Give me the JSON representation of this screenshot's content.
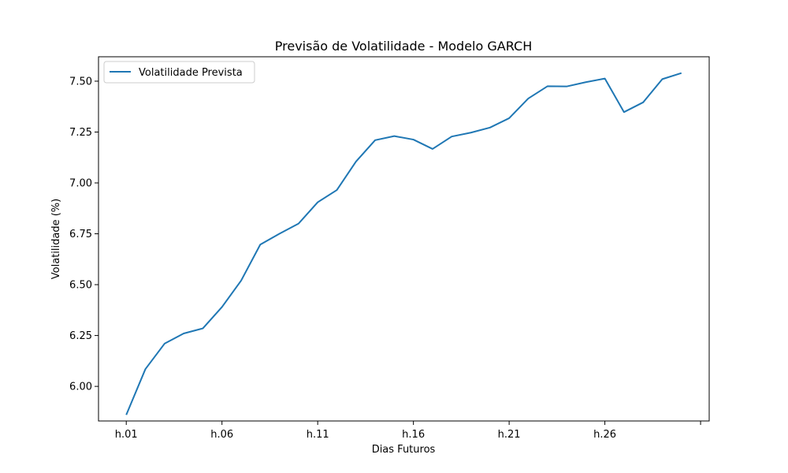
{
  "chart_data": {
    "type": "line",
    "title": "Previsão de Volatilidade - Modelo GARCH",
    "xlabel": "Dias Futuros",
    "ylabel": "Volatilidade (%)",
    "x": [
      "h.01",
      "h.02",
      "h.03",
      "h.04",
      "h.05",
      "h.06",
      "h.07",
      "h.08",
      "h.09",
      "h.10",
      "h.11",
      "h.12",
      "h.13",
      "h.14",
      "h.15",
      "h.16",
      "h.17",
      "h.18",
      "h.19",
      "h.20",
      "h.21",
      "h.22",
      "h.23",
      "h.24",
      "h.25",
      "h.26",
      "h.27",
      "h.28",
      "h.29",
      "h.30"
    ],
    "x_tick_labels": [
      "h.01",
      "h.06",
      "h.11",
      "h.16",
      "h.21",
      "h.26",
      ""
    ],
    "x_tick_positions": [
      0,
      5,
      10,
      15,
      20,
      25,
      30
    ],
    "ylim": [
      5.83,
      7.62
    ],
    "y_ticks": [
      6.0,
      6.25,
      6.5,
      6.75,
      7.0,
      7.25,
      7.5
    ],
    "y_tick_labels": [
      "6.00",
      "6.25",
      "6.50",
      "6.75",
      "7.00",
      "7.25",
      "7.50"
    ],
    "grid": false,
    "legend_position": "top-left",
    "series": [
      {
        "name": "Volatilidade Prevista",
        "color": "#1f77b4",
        "values": [
          5.86,
          6.085,
          6.21,
          6.26,
          6.285,
          6.39,
          6.52,
          6.697,
          6.75,
          6.8,
          6.905,
          6.965,
          7.105,
          7.21,
          7.23,
          7.213,
          7.167,
          7.228,
          7.247,
          7.272,
          7.318,
          7.415,
          7.475,
          7.474,
          7.495,
          7.513,
          7.348,
          7.396,
          7.51,
          7.54
        ]
      }
    ]
  }
}
